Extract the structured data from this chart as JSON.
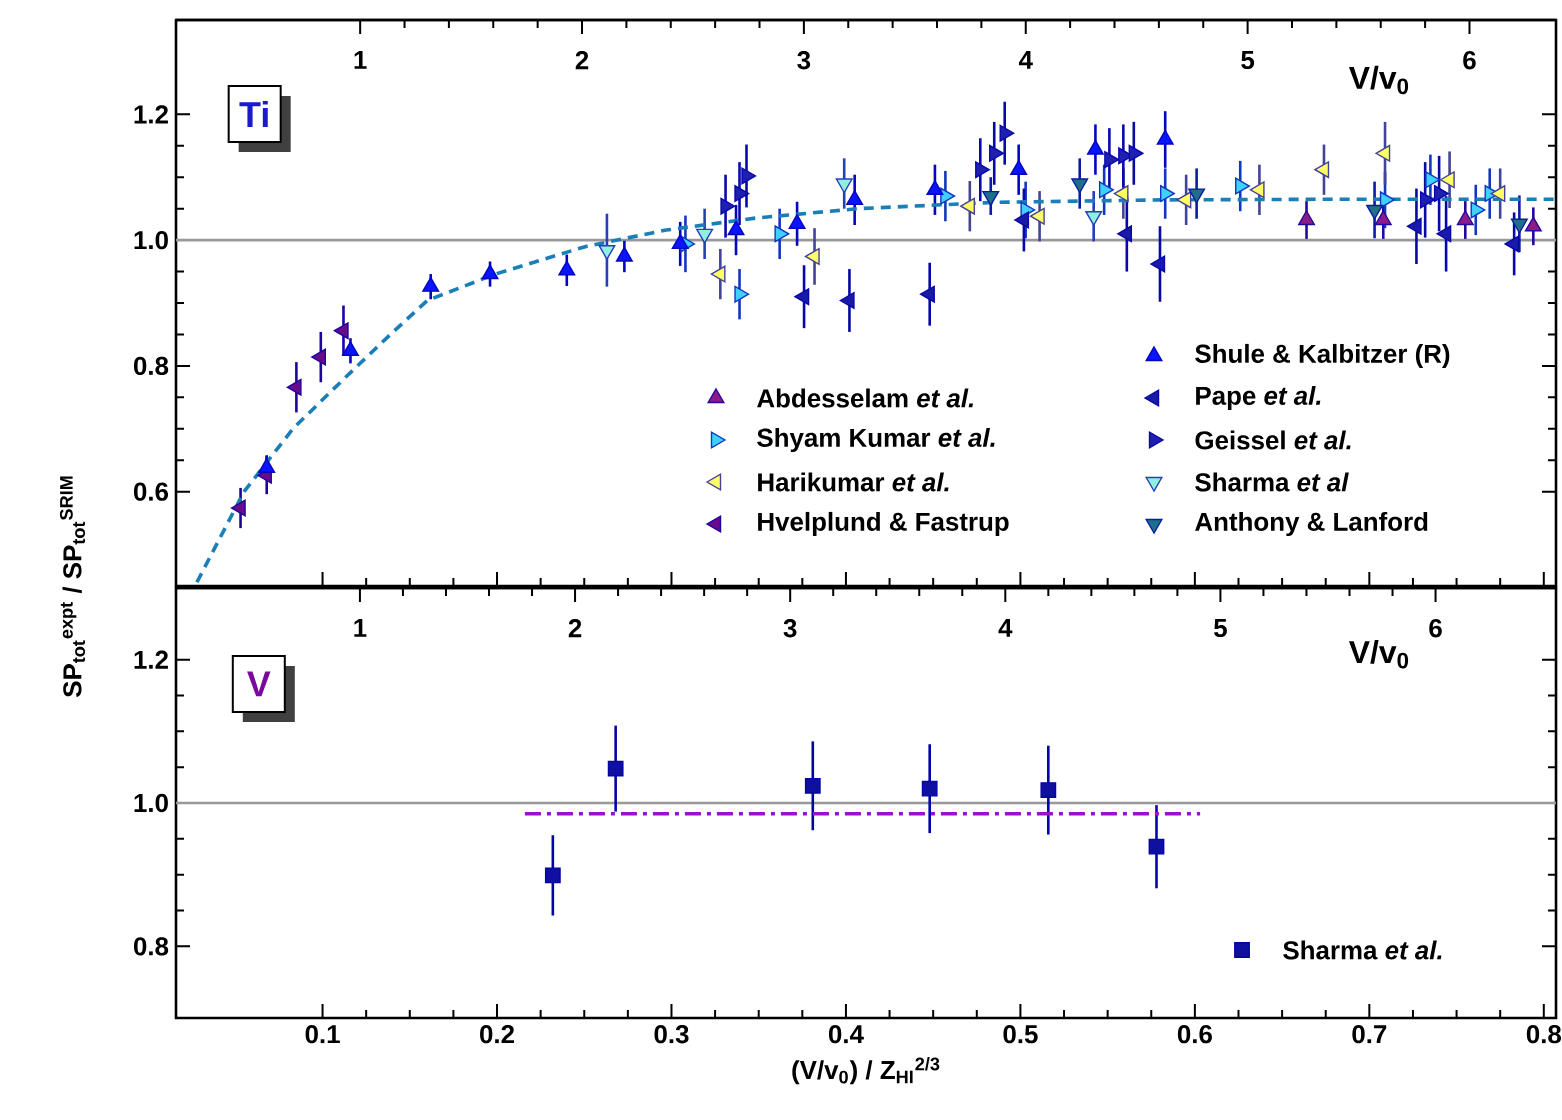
{
  "chart_data": [
    {
      "type": "scatter",
      "ylabel": "SP$_{tot}$$^{expt}$ / SP$_{tot}$$^{SRIM}$",
      "annotations": [
        "Ti"
      ],
      "xlim": [
        0.016,
        0.807
      ],
      "xticks": [
        0.1,
        0.2,
        0.3,
        0.4,
        0.5,
        0.6,
        0.7,
        0.8
      ],
      "ylim": [
        0.45,
        1.35
      ],
      "yticks": [
        0.6,
        0.8,
        {
          "value": 1,
          "label": "1.0"
        },
        1.2
      ],
      "x2lim": [
        0.17,
        6.39
      ],
      "x2ticks": [
        1,
        2,
        3,
        4,
        5,
        6
      ],
      "x2label": "V/v$_{0}$",
      "tick_labels": "y",
      "legend": "bottom right",
      "ref_lines": [
        {
          "axis": "y",
          "value": 1,
          "color": "#999999"
        }
      ],
      "series": [
        {
          "name": "Abdesselam *et al.*",
          "color": "#8b1a8b",
          "marker": "triangle",
          "x": [
            0.664,
            0.708,
            0.755,
            0.794
          ],
          "values": [
            1.032,
            1.032,
            1.032,
            1.022
          ],
          "errors": [
            0.03,
            0.03,
            0.03,
            0.03
          ]
        },
        {
          "name": "Shyam Kumar *et al.*",
          "color": "#40d0ff",
          "marker": "triangle-right",
          "x": [
            0.308,
            0.339,
            0.362,
            0.457,
            0.503,
            0.548,
            0.583,
            0.626,
            0.709,
            0.735,
            0.761,
            0.769
          ],
          "values": [
            0.994,
            0.914,
            1.01,
            1.07,
            1.048,
            1.08,
            1.074,
            1.086,
            1.064,
            1.096,
            1.048,
            1.074
          ],
          "errors": [
            0.045,
            0.04,
            0.04,
            0.04,
            0.045,
            0.04,
            0.04,
            0.04,
            0.045,
            0.04,
            0.04,
            0.04
          ]
        },
        {
          "name": "Harikumar *et al.*",
          "color": "#ffff66",
          "marker": "triangle-left",
          "x": [
            0.328,
            0.382,
            0.471,
            0.511,
            0.559,
            0.595,
            0.637,
            0.674,
            0.709,
            0.746,
            0.775
          ],
          "values": [
            0.946,
            0.974,
            1.054,
            1.038,
            1.074,
            1.064,
            1.08,
            1.112,
            1.138,
            1.096,
            1.074
          ],
          "errors": [
            0.04,
            0.045,
            0.04,
            0.04,
            0.04,
            0.04,
            0.04,
            0.04,
            0.05,
            0.045,
            0.04
          ]
        },
        {
          "name": "Hvelplund & Fastrup",
          "color": "#6a0a8a",
          "marker": "triangle-left",
          "x": [
            0.053,
            0.068,
            0.085,
            0.099,
            0.112
          ],
          "values": [
            0.574,
            0.626,
            0.766,
            0.814,
            0.856
          ],
          "errors": [
            0.032,
            0.03,
            0.04,
            0.04,
            0.04
          ]
        },
        {
          "name": "Shule & Kalbitzer (R)",
          "color": "#0a14ff",
          "marker": "triangle",
          "x": [
            0.068,
            0.116,
            0.162,
            0.196,
            0.24,
            0.273,
            0.305,
            0.337,
            0.372,
            0.405,
            0.451,
            0.499,
            0.543,
            0.583
          ],
          "values": [
            0.638,
            0.824,
            0.926,
            0.946,
            0.952,
            0.974,
            0.994,
            1.016,
            1.026,
            1.064,
            1.08,
            1.112,
            1.144,
            1.16
          ],
          "errors": [
            0.02,
            0.02,
            0.02,
            0.02,
            0.025,
            0.025,
            0.035,
            0.04,
            0.035,
            0.04,
            0.04,
            0.04,
            0.04,
            0.045
          ]
        },
        {
          "name": "Pape *et al.*",
          "color": "#1a1aa8",
          "marker": "triangle-left",
          "x": [
            0.376,
            0.402,
            0.448,
            0.502,
            0.561,
            0.58,
            0.727,
            0.744,
            0.783
          ],
          "values": [
            0.91,
            0.904,
            0.914,
            1.032,
            1.01,
            0.962,
            1.022,
            1.01,
            0.994
          ],
          "errors": [
            0.05,
            0.05,
            0.05,
            0.05,
            0.06,
            0.06,
            0.06,
            0.06,
            0.05
          ]
        },
        {
          "name": "Geissel *et al.*",
          "color": "#2020b0",
          "marker": "triangle-right",
          "x": [
            0.331,
            0.339,
            0.343,
            0.477,
            0.485,
            0.491,
            0.551,
            0.559,
            0.565,
            0.732,
            0.74
          ],
          "values": [
            1.054,
            1.074,
            1.102,
            1.112,
            1.138,
            1.17,
            1.128,
            1.134,
            1.138,
            1.064,
            1.074
          ],
          "errors": [
            0.05,
            0.05,
            0.05,
            0.05,
            0.05,
            0.05,
            0.05,
            0.05,
            0.05,
            0.06,
            0.06
          ]
        },
        {
          "name": "Sharma *et al*",
          "color": "#90f0e0",
          "marker": "triangle-down",
          "x": [
            0.263,
            0.319,
            0.399,
            0.542
          ],
          "values": [
            0.984,
            1.01,
            1.09,
            1.038
          ],
          "errors": [
            0.058,
            0.04,
            0.04,
            0.04
          ]
        },
        {
          "name": "Anthony & Lanford",
          "color": "#1f6f8b",
          "marker": "triangle-down",
          "x": [
            0.483,
            0.534,
            0.601,
            0.703,
            0.786
          ],
          "values": [
            1.07,
            1.09,
            1.074,
            1.048,
            1.026
          ],
          "errors": [
            0.03,
            0.04,
            0.04,
            0.045,
            0.045
          ]
        },
        {
          "type": "line",
          "color": "#1a7fb8",
          "line_style": "dashed",
          "marker": "none",
          "x": [
            0.028,
            0.055,
            0.083,
            0.111,
            0.137,
            0.16,
            0.199,
            0.251,
            0.297,
            0.348,
            0.407,
            0.485,
            0.583,
            0.681,
            0.807
          ],
          "values": [
            0.456,
            0.6,
            0.7,
            0.776,
            0.845,
            0.904,
            0.946,
            0.99,
            1.016,
            1.035,
            1.05,
            1.06,
            1.064,
            1.065,
            1.065
          ]
        }
      ]
    },
    {
      "type": "scatter",
      "xlabel": "(V/v$_{0}$) / Z$_{HI}$$^{2/3}$",
      "annotations": [
        "V"
      ],
      "xlim": [
        0.016,
        0.807
      ],
      "xticks": [
        0.1,
        0.2,
        0.3,
        0.4,
        0.5,
        0.6,
        0.7,
        0.8
      ],
      "ylim": [
        0.7,
        1.3
      ],
      "yticks": [
        0.8,
        {
          "value": 1,
          "label": "1.0"
        },
        1.2
      ],
      "x2lim": [
        0.145,
        6.56
      ],
      "x2ticks": [
        1,
        2,
        3,
        4,
        5,
        6
      ],
      "x2label": "V/v$_{0}$",
      "legend": "bottom right",
      "ref_lines": [
        {
          "axis": "y",
          "value": 1,
          "color": "#999999"
        }
      ],
      "series": [
        {
          "name": "Sharma *et al.*",
          "color": "#1010a0",
          "marker": "square",
          "x": [
            0.232,
            0.268,
            0.381,
            0.448,
            0.516,
            0.578
          ],
          "values": [
            0.899,
            1.048,
            1.024,
            1.02,
            1.018,
            0.939
          ],
          "errors": [
            0.056,
            0.06,
            0.062,
            0.062,
            0.062,
            0.058
          ]
        },
        {
          "type": "line",
          "color": "#9a10d0",
          "line_style": "dashdot",
          "marker": "none",
          "x": [
            0.216,
            0.603
          ],
          "values": [
            0.985,
            0.985
          ]
        }
      ]
    }
  ]
}
